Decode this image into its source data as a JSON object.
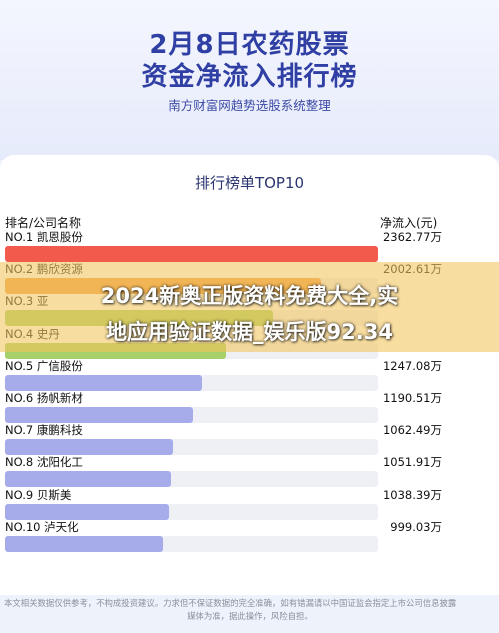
{
  "header": {
    "title_line1": "2月8日农药股票",
    "title_line2": "资金净流入排行榜",
    "subtitle": "南方财富网趋势选股系统整理"
  },
  "card": {
    "title": "排行榜单TOP10",
    "col_name": "排名/公司名称",
    "col_value": "净流入(元)"
  },
  "watermark": {
    "line1": "2024新奥正版资料免费大全,实",
    "line2": "地应用验证数据_娱乐版92.34"
  },
  "footer": {
    "line1": "本文相关数据仅供参考，不构成投资建议。力求但不保证数据的完全准确，如有错漏请以中国证监会指定上市公司信息披露",
    "line2": "媒体为准，据此操作，风险自担。"
  },
  "colors": {
    "top_bar": "#f25a4b",
    "other_bar": "#a6acea",
    "track": "#eef0f5",
    "title": "#2f3fa3"
  },
  "chart_data": {
    "type": "bar",
    "orientation": "horizontal",
    "title": "排行榜单TOP10",
    "unit": "万",
    "categories": [
      "NO.1 凯恩股份",
      "NO.2 鹏欣资源",
      "NO.3 亚",
      "NO.4 史丹",
      "NO.5 广信股份",
      "NO.6 扬帆新材",
      "NO.7 康鹏科技",
      "NO.8 沈阳化工",
      "NO.9 贝斯美",
      "NO.10 泸天化"
    ],
    "values": [
      2362.77,
      2002.61,
      1700,
      1400,
      1247.08,
      1190.51,
      1062.49,
      1051.91,
      1038.39,
      999.03
    ],
    "value_labels": [
      "2362.77万",
      "2002.61万",
      "",
      "",
      "1247.08万",
      "1190.51万",
      "1062.49万",
      "1051.91万",
      "1038.39万",
      "999.03万"
    ],
    "bar_colors": [
      "#f25a4b",
      "#f0a04e",
      "#a6d06a",
      "#a6d06a",
      "#a6acea",
      "#a6acea",
      "#a6acea",
      "#a6acea",
      "#a6acea",
      "#a6acea"
    ],
    "xlim": [
      0,
      2362.77
    ]
  }
}
